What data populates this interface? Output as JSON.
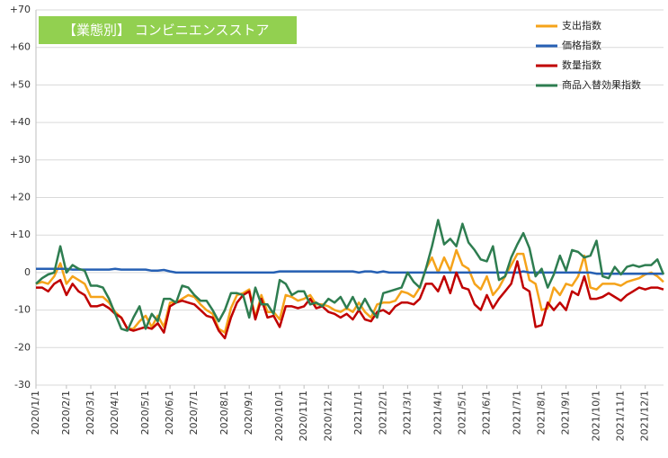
{
  "chart_data": {
    "type": "line",
    "title": "【業態別】 コンビニエンスストア",
    "categories": [
      "2020/1/1",
      null,
      null,
      null,
      null,
      "2020/2/1",
      null,
      null,
      null,
      "2020/3/1",
      null,
      null,
      null,
      "2020/4/1",
      null,
      null,
      null,
      null,
      "2020/5/1",
      null,
      null,
      null,
      "2020/6/1",
      null,
      null,
      null,
      "2020/7/1",
      null,
      null,
      null,
      null,
      "2020/8/1",
      null,
      null,
      null,
      "2020/9/1",
      null,
      null,
      null,
      null,
      "2020/10/1",
      null,
      null,
      null,
      "2020/11/1",
      null,
      null,
      null,
      "2020/12/1",
      null,
      null,
      null,
      null,
      "2021/1/1",
      null,
      null,
      null,
      "2021/2/1",
      null,
      null,
      null,
      "2021/3/1",
      null,
      null,
      null,
      null,
      "2021/4/1",
      null,
      null,
      null,
      "2021/5/1",
      null,
      null,
      null,
      "2021/6/1",
      null,
      null,
      null,
      null,
      "2021/7/1",
      null,
      null,
      null,
      "2021/8/1",
      null,
      null,
      null,
      "2021/9/1",
      null,
      null,
      null,
      null,
      "2021/10/1",
      null,
      null,
      null,
      "2021/11/1",
      null,
      null,
      null,
      "2021/12/1",
      null,
      null,
      null
    ],
    "series": [
      {
        "name": "支出指数",
        "color": "#f5a31a",
        "values": [
          -3,
          -2.5,
          -3,
          -1,
          2.5,
          -3,
          -1,
          -2,
          -3,
          -6.5,
          -6.5,
          -6.5,
          -8,
          -10.5,
          -12,
          -15,
          -15,
          -13,
          -11.5,
          -14.5,
          -11.5,
          -14.5,
          -8,
          -8,
          -7,
          -6,
          -6.5,
          -8.5,
          -10,
          -11,
          -15,
          -16,
          -9.5,
          -6,
          -5.5,
          -4.5,
          -12,
          -6,
          -10.5,
          -10.5,
          -12.5,
          -6,
          -6.5,
          -7.5,
          -7,
          -6,
          -8.5,
          -8.5,
          -9,
          -10,
          -10.5,
          -9.5,
          -10.5,
          -8,
          -10.5,
          -12,
          -8.5,
          -8,
          -8,
          -7.5,
          -5,
          -5.5,
          -6.5,
          -4,
          1,
          4,
          0,
          4,
          0.5,
          6,
          2,
          1,
          -3,
          -4.5,
          -1,
          -6,
          -4,
          -1,
          2,
          5,
          5,
          -2,
          -3,
          -10,
          -9.5,
          -4,
          -6,
          -3,
          -3.5,
          -1,
          4.5,
          -4,
          -4.5,
          -3,
          -3,
          -3,
          -3.5,
          -2.5,
          -2,
          -1.5,
          -0.5,
          0,
          -1,
          -2.5
        ]
      },
      {
        "name": "価格指数",
        "color": "#2660b4",
        "values": [
          1,
          1,
          1,
          1,
          1,
          1,
          0.8,
          0.8,
          0.8,
          0.8,
          0.8,
          0.8,
          0.8,
          1,
          0.8,
          0.8,
          0.8,
          0.8,
          0.8,
          0.5,
          0.5,
          0.7,
          0.3,
          0,
          0,
          0,
          0,
          0,
          0,
          0,
          0,
          0,
          0,
          0,
          0,
          0,
          0,
          0,
          0,
          0,
          0.3,
          0.3,
          0.3,
          0.3,
          0.3,
          0.3,
          0.3,
          0.3,
          0.3,
          0.3,
          0.3,
          0.3,
          0.3,
          0,
          0.3,
          0.3,
          0,
          0.3,
          0,
          0,
          0,
          0,
          0,
          0,
          0,
          0,
          0,
          0,
          0,
          0,
          0,
          0,
          0,
          0,
          0,
          0,
          0,
          0,
          0,
          0,
          0.3,
          0,
          0,
          0,
          0,
          0,
          0,
          0,
          0,
          0,
          0,
          0,
          -0.3,
          -0.3,
          -0.3,
          -0.3,
          -0.3,
          -0.3,
          -0.3,
          -0.3,
          -0.3,
          -0.3,
          -0.3,
          -0.3
        ]
      },
      {
        "name": "数量指数",
        "color": "#c00000",
        "values": [
          -4,
          -4,
          -5,
          -3,
          -2,
          -6,
          -3,
          -5,
          -6,
          -9,
          -9,
          -8.5,
          -9.5,
          -11,
          -12,
          -15,
          -15.5,
          -15,
          -14.5,
          -15,
          -13.5,
          -16,
          -9,
          -8,
          -7.5,
          -8,
          -8.5,
          -10,
          -11.5,
          -12,
          -15.5,
          -17.5,
          -12,
          -8,
          -6,
          -5,
          -12.5,
          -7,
          -12,
          -11.5,
          -14.5,
          -9,
          -9,
          -9.5,
          -9,
          -7,
          -9.5,
          -9,
          -10.5,
          -11,
          -12,
          -11,
          -12.5,
          -10,
          -12.5,
          -13,
          -10.5,
          -10,
          -11,
          -9,
          -8,
          -8,
          -8.5,
          -7,
          -3,
          -3,
          -5,
          -1,
          -5.5,
          0,
          -4,
          -4.5,
          -8.5,
          -10,
          -6,
          -9.5,
          -7,
          -5,
          -3,
          3,
          -4,
          -5,
          -14.5,
          -14,
          -8,
          -10,
          -8,
          -10,
          -5,
          -6,
          -1,
          -7,
          -7,
          -6.5,
          -5.5,
          -6.5,
          -7.5,
          -6,
          -5,
          -4,
          -4.5,
          -4,
          -4,
          -4.5
        ]
      },
      {
        "name": "商品入替効果指数",
        "color": "#2e7d50",
        "values": [
          -3,
          -1.5,
          -0.5,
          0,
          7,
          0,
          2,
          1,
          0.5,
          -3.5,
          -3.5,
          -4,
          -7,
          -11,
          -15,
          -15.5,
          -12,
          -9,
          -15,
          -11,
          -13,
          -7,
          -7,
          -8,
          -3.5,
          -4,
          -6,
          -7.5,
          -7.5,
          -10,
          -13,
          -10,
          -5.5,
          -5.5,
          -6,
          -12,
          -4,
          -8.5,
          -8.5,
          -11,
          -2,
          -3,
          -6,
          -5,
          -5,
          -8.5,
          -8,
          -9,
          -7,
          -8,
          -6.5,
          -9.5,
          -6.5,
          -10,
          -7,
          -10,
          -12,
          -5.5,
          -5,
          -4.5,
          -4,
          0,
          -2.5,
          -4,
          1,
          7,
          14,
          7.5,
          9,
          7,
          13,
          8,
          6,
          3.5,
          3,
          7,
          -2,
          -1,
          4,
          7.5,
          10.5,
          6.5,
          -1,
          1,
          -4,
          -0.5,
          4.5,
          0.5,
          6,
          5.5,
          4,
          4.5,
          8.5,
          -1,
          -1.5,
          1.5,
          -0.5,
          1.5,
          2,
          1.5,
          2,
          2,
          3.5,
          -0.5
        ]
      }
    ],
    "ylim": [
      -30,
      70
    ],
    "yticks": [
      -30,
      -20,
      -10,
      0,
      {
        "value": 10,
        "label": "+10"
      },
      {
        "value": 20,
        "label": "+20"
      },
      {
        "value": 30,
        "label": "+30"
      },
      {
        "value": 40,
        "label": "+40"
      },
      {
        "value": 50,
        "label": "+50"
      },
      {
        "value": 60,
        "label": "+60"
      },
      {
        "value": 70,
        "label": "+70"
      }
    ],
    "grid": true,
    "legend": "top-right"
  }
}
